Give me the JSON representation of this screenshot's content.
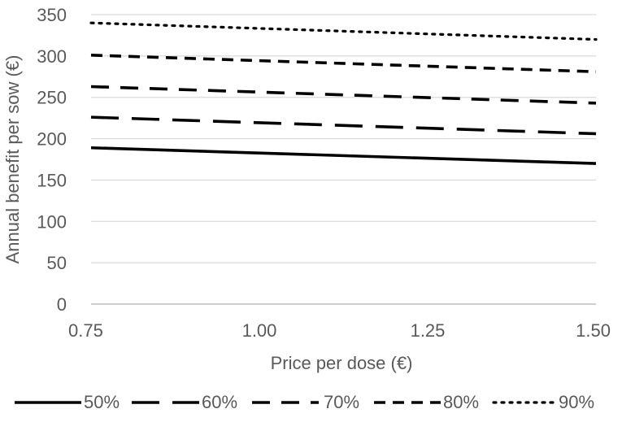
{
  "chart_data": {
    "type": "line",
    "title": "",
    "xlabel": "Price per dose (€)",
    "ylabel": "Annual benefit per sow (€)",
    "x": [
      0.75,
      1.5
    ],
    "x_tick_labels": [
      "0.75",
      "1.00",
      "1.25",
      "1.50"
    ],
    "x_ticks": [
      0.75,
      1.0,
      1.25,
      1.5
    ],
    "xlim": [
      0.75,
      1.5
    ],
    "y_ticks": [
      0,
      50,
      100,
      150,
      200,
      250,
      300,
      350
    ],
    "y_tick_labels": [
      "0",
      "50",
      "100",
      "150",
      "200",
      "250",
      "300",
      "350"
    ],
    "ylim": [
      0,
      350
    ],
    "grid": "horizontal",
    "legend_position": "bottom",
    "series": [
      {
        "name": "50%",
        "values": [
          189,
          170
        ],
        "style": "solid",
        "color": "#000000"
      },
      {
        "name": "60%",
        "values": [
          226,
          206
        ],
        "style": "long-dash",
        "color": "#000000"
      },
      {
        "name": "70%",
        "values": [
          263,
          243
        ],
        "style": "dash",
        "color": "#000000"
      },
      {
        "name": "80%",
        "values": [
          301,
          281
        ],
        "style": "short-dash",
        "color": "#000000"
      },
      {
        "name": "90%",
        "values": [
          340,
          320
        ],
        "style": "dotted",
        "color": "#000000"
      }
    ]
  }
}
